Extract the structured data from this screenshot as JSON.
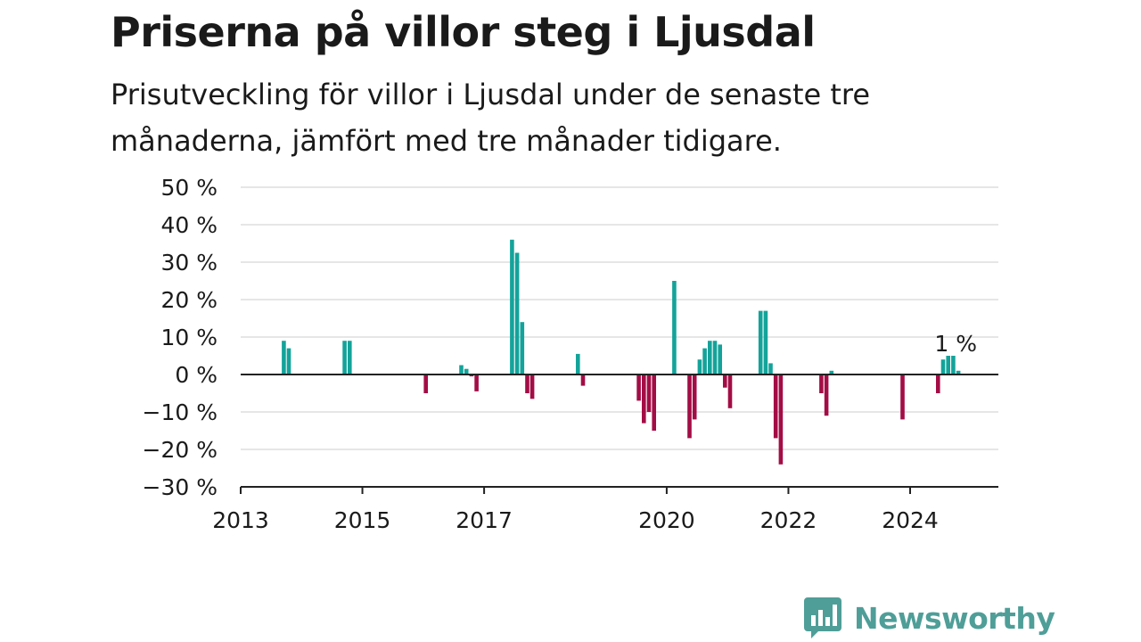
{
  "header": {
    "title": "Priserna på villor steg i Ljusdal",
    "subtitle": "Prisutveckling för villor i Ljusdal under de senaste tre månaderna, jämfört med tre månader tidigare."
  },
  "brand": {
    "name": "Newsworthy",
    "color": "#4f9e98"
  },
  "colors": {
    "positive": "#14a39a",
    "negative": "#a30d45",
    "grid": "#dddddd",
    "axis": "#222222"
  },
  "chart_data": {
    "type": "bar",
    "ylim": [
      -30,
      50
    ],
    "y_ticks": [
      -30,
      -20,
      -10,
      0,
      10,
      20,
      30,
      40,
      50
    ],
    "y_tick_labels": [
      "−30 %",
      "−20 %",
      "−10 %",
      "0 %",
      "10 %",
      "20 %",
      "30 %",
      "40 %",
      "50 %"
    ],
    "x_ticks": [
      2013,
      2015,
      2017,
      2020,
      2022,
      2024
    ],
    "x_tick_labels": [
      "2013",
      "2015",
      "2017",
      "2020",
      "2022",
      "2024"
    ],
    "xlim": [
      2013.0,
      2025.45
    ],
    "last_value_label": "1 %",
    "grid": true,
    "series": [
      {
        "values": [
          {
            "x": "2013-09",
            "y": 9
          },
          {
            "x": "2013-10",
            "y": 7
          },
          {
            "x": "2014-09",
            "y": 9
          },
          {
            "x": "2014-10",
            "y": 9
          },
          {
            "x": "2016-01",
            "y": -5
          },
          {
            "x": "2016-08",
            "y": 2.5
          },
          {
            "x": "2016-09",
            "y": 1.5
          },
          {
            "x": "2016-10",
            "y": -0.5
          },
          {
            "x": "2016-11",
            "y": -4.5
          },
          {
            "x": "2017-06",
            "y": 36
          },
          {
            "x": "2017-07",
            "y": 32.5
          },
          {
            "x": "2017-08",
            "y": 14
          },
          {
            "x": "2017-09",
            "y": -5
          },
          {
            "x": "2017-10",
            "y": -6.5
          },
          {
            "x": "2018-07",
            "y": 5.5
          },
          {
            "x": "2018-08",
            "y": -3
          },
          {
            "x": "2019-07",
            "y": -7
          },
          {
            "x": "2019-08",
            "y": -13
          },
          {
            "x": "2019-09",
            "y": -10
          },
          {
            "x": "2019-10",
            "y": -15
          },
          {
            "x": "2020-02",
            "y": 25
          },
          {
            "x": "2020-05",
            "y": -17
          },
          {
            "x": "2020-06",
            "y": -12
          },
          {
            "x": "2020-07",
            "y": 4
          },
          {
            "x": "2020-08",
            "y": 7
          },
          {
            "x": "2020-09",
            "y": 9
          },
          {
            "x": "2020-10",
            "y": 9
          },
          {
            "x": "2020-11",
            "y": 8
          },
          {
            "x": "2020-12",
            "y": -3.5
          },
          {
            "x": "2021-01",
            "y": -9
          },
          {
            "x": "2021-07",
            "y": 17
          },
          {
            "x": "2021-08",
            "y": 17
          },
          {
            "x": "2021-09",
            "y": 3
          },
          {
            "x": "2021-10",
            "y": -17
          },
          {
            "x": "2021-11",
            "y": -24
          },
          {
            "x": "2022-07",
            "y": -5
          },
          {
            "x": "2022-08",
            "y": -11
          },
          {
            "x": "2022-09",
            "y": 1
          },
          {
            "x": "2023-11",
            "y": -12
          },
          {
            "x": "2024-06",
            "y": -5
          },
          {
            "x": "2024-07",
            "y": 4
          },
          {
            "x": "2024-08",
            "y": 5
          },
          {
            "x": "2024-09",
            "y": 5
          },
          {
            "x": "2024-10",
            "y": 1
          }
        ]
      }
    ]
  }
}
